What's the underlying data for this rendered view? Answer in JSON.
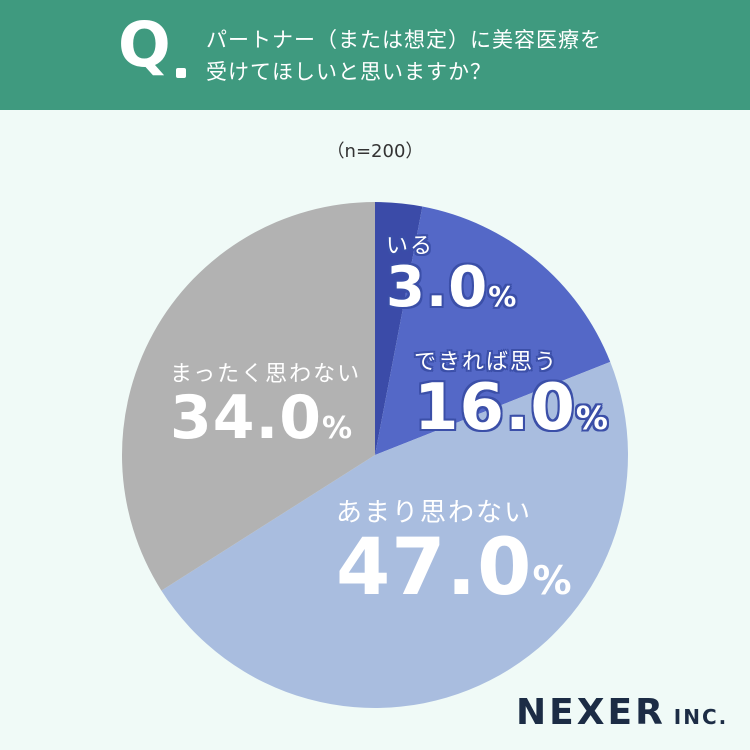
{
  "header": {
    "q_label": "Q",
    "question_line1": "パートナー（または想定）に美容医療を",
    "question_line2": "受けてほしいと思いますか？"
  },
  "sample_size": "（n=200）",
  "chart_data": {
    "type": "pie",
    "slices": [
      {
        "label": "いる",
        "value": 3.0,
        "display": "3.0",
        "color": "#3b4ba8"
      },
      {
        "label": "できれば思う",
        "value": 16.0,
        "display": "16.0",
        "color": "#5468c7"
      },
      {
        "label": "あまり思わない",
        "value": 47.0,
        "display": "47.0",
        "color": "#a9bddf"
      },
      {
        "label": "まったく思わない",
        "value": 34.0,
        "display": "34.0",
        "color": "#b2b2b2"
      }
    ],
    "unit": "%",
    "start": "12 o'clock",
    "direction": "clockwise"
  },
  "logo": {
    "main": "NEXER",
    "sub": "INC."
  }
}
